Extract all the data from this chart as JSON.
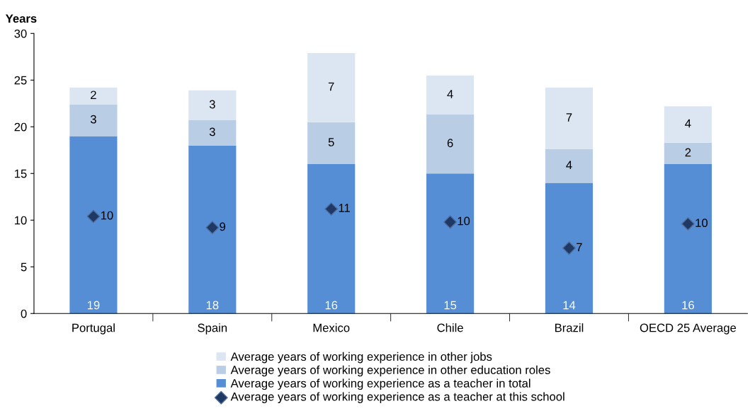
{
  "chart_data": {
    "type": "bar",
    "stacked": true,
    "ylabel": "Years",
    "categories": [
      "Portugal",
      "Spain",
      "Mexico",
      "Chile",
      "Brazil",
      "OECD 25 Average"
    ],
    "ylim": [
      0,
      30
    ],
    "yticks": [
      0,
      5,
      10,
      15,
      20,
      25,
      30
    ],
    "grid": false,
    "legend": "bottom",
    "series": [
      {
        "name": "Average years of working experience as a teacher in total",
        "color": "#558ed5",
        "values": [
          19.0,
          18.0,
          16.0,
          15.0,
          14.0,
          16.0
        ],
        "value_labels": [
          "19",
          "18",
          "16",
          "15",
          "14",
          "16"
        ]
      },
      {
        "name": "Average years of working experience in other education roles",
        "color": "#b9cde5",
        "values": [
          3.4,
          2.7,
          4.5,
          6.3,
          3.6,
          2.3
        ],
        "value_labels": [
          "3",
          "3",
          "5",
          "6",
          "4",
          "2"
        ]
      },
      {
        "name": "Average years of working experience in other jobs",
        "color": "#dce6f2",
        "values": [
          1.8,
          3.2,
          7.4,
          4.2,
          6.6,
          3.9
        ],
        "value_labels": [
          "2",
          "3",
          "7",
          "4",
          "7",
          "4"
        ]
      },
      {
        "name": "Average years of working experience as a teacher at this school",
        "type": "scatter",
        "marker": "diamond",
        "color": "#1f3864",
        "values": [
          10.4,
          9.2,
          11.2,
          9.8,
          7.0,
          9.6
        ],
        "value_labels": [
          "10",
          "9",
          "11",
          "10",
          "7",
          "10"
        ]
      }
    ]
  }
}
